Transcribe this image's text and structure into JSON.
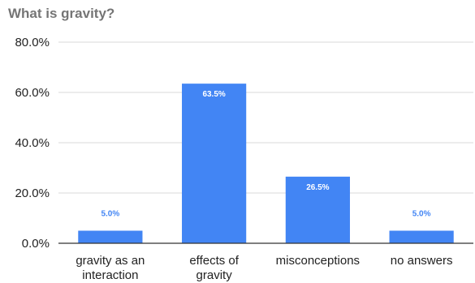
{
  "chart_data": {
    "type": "bar",
    "title": "What is gravity?",
    "xlabel": "",
    "ylabel": "",
    "categories": [
      [
        "gravity as an",
        "interaction"
      ],
      [
        "effects of",
        "gravity"
      ],
      [
        "misconceptions"
      ],
      [
        "no answers"
      ]
    ],
    "values": [
      5.0,
      63.5,
      26.5,
      5.0
    ],
    "data_labels": [
      "5.0%",
      "63.5%",
      "26.5%",
      "5.0%"
    ],
    "ylim": [
      0,
      80
    ],
    "yticks": [
      0,
      20,
      40,
      60,
      80
    ],
    "ytick_labels": [
      "0.0%",
      "20.0%",
      "40.0%",
      "60.0%",
      "80.0%"
    ],
    "grid": true,
    "legend": "none",
    "bar_color": "#4285f4",
    "label_inside_color": "#ffffff",
    "label_outside_color": "#4285f4"
  }
}
